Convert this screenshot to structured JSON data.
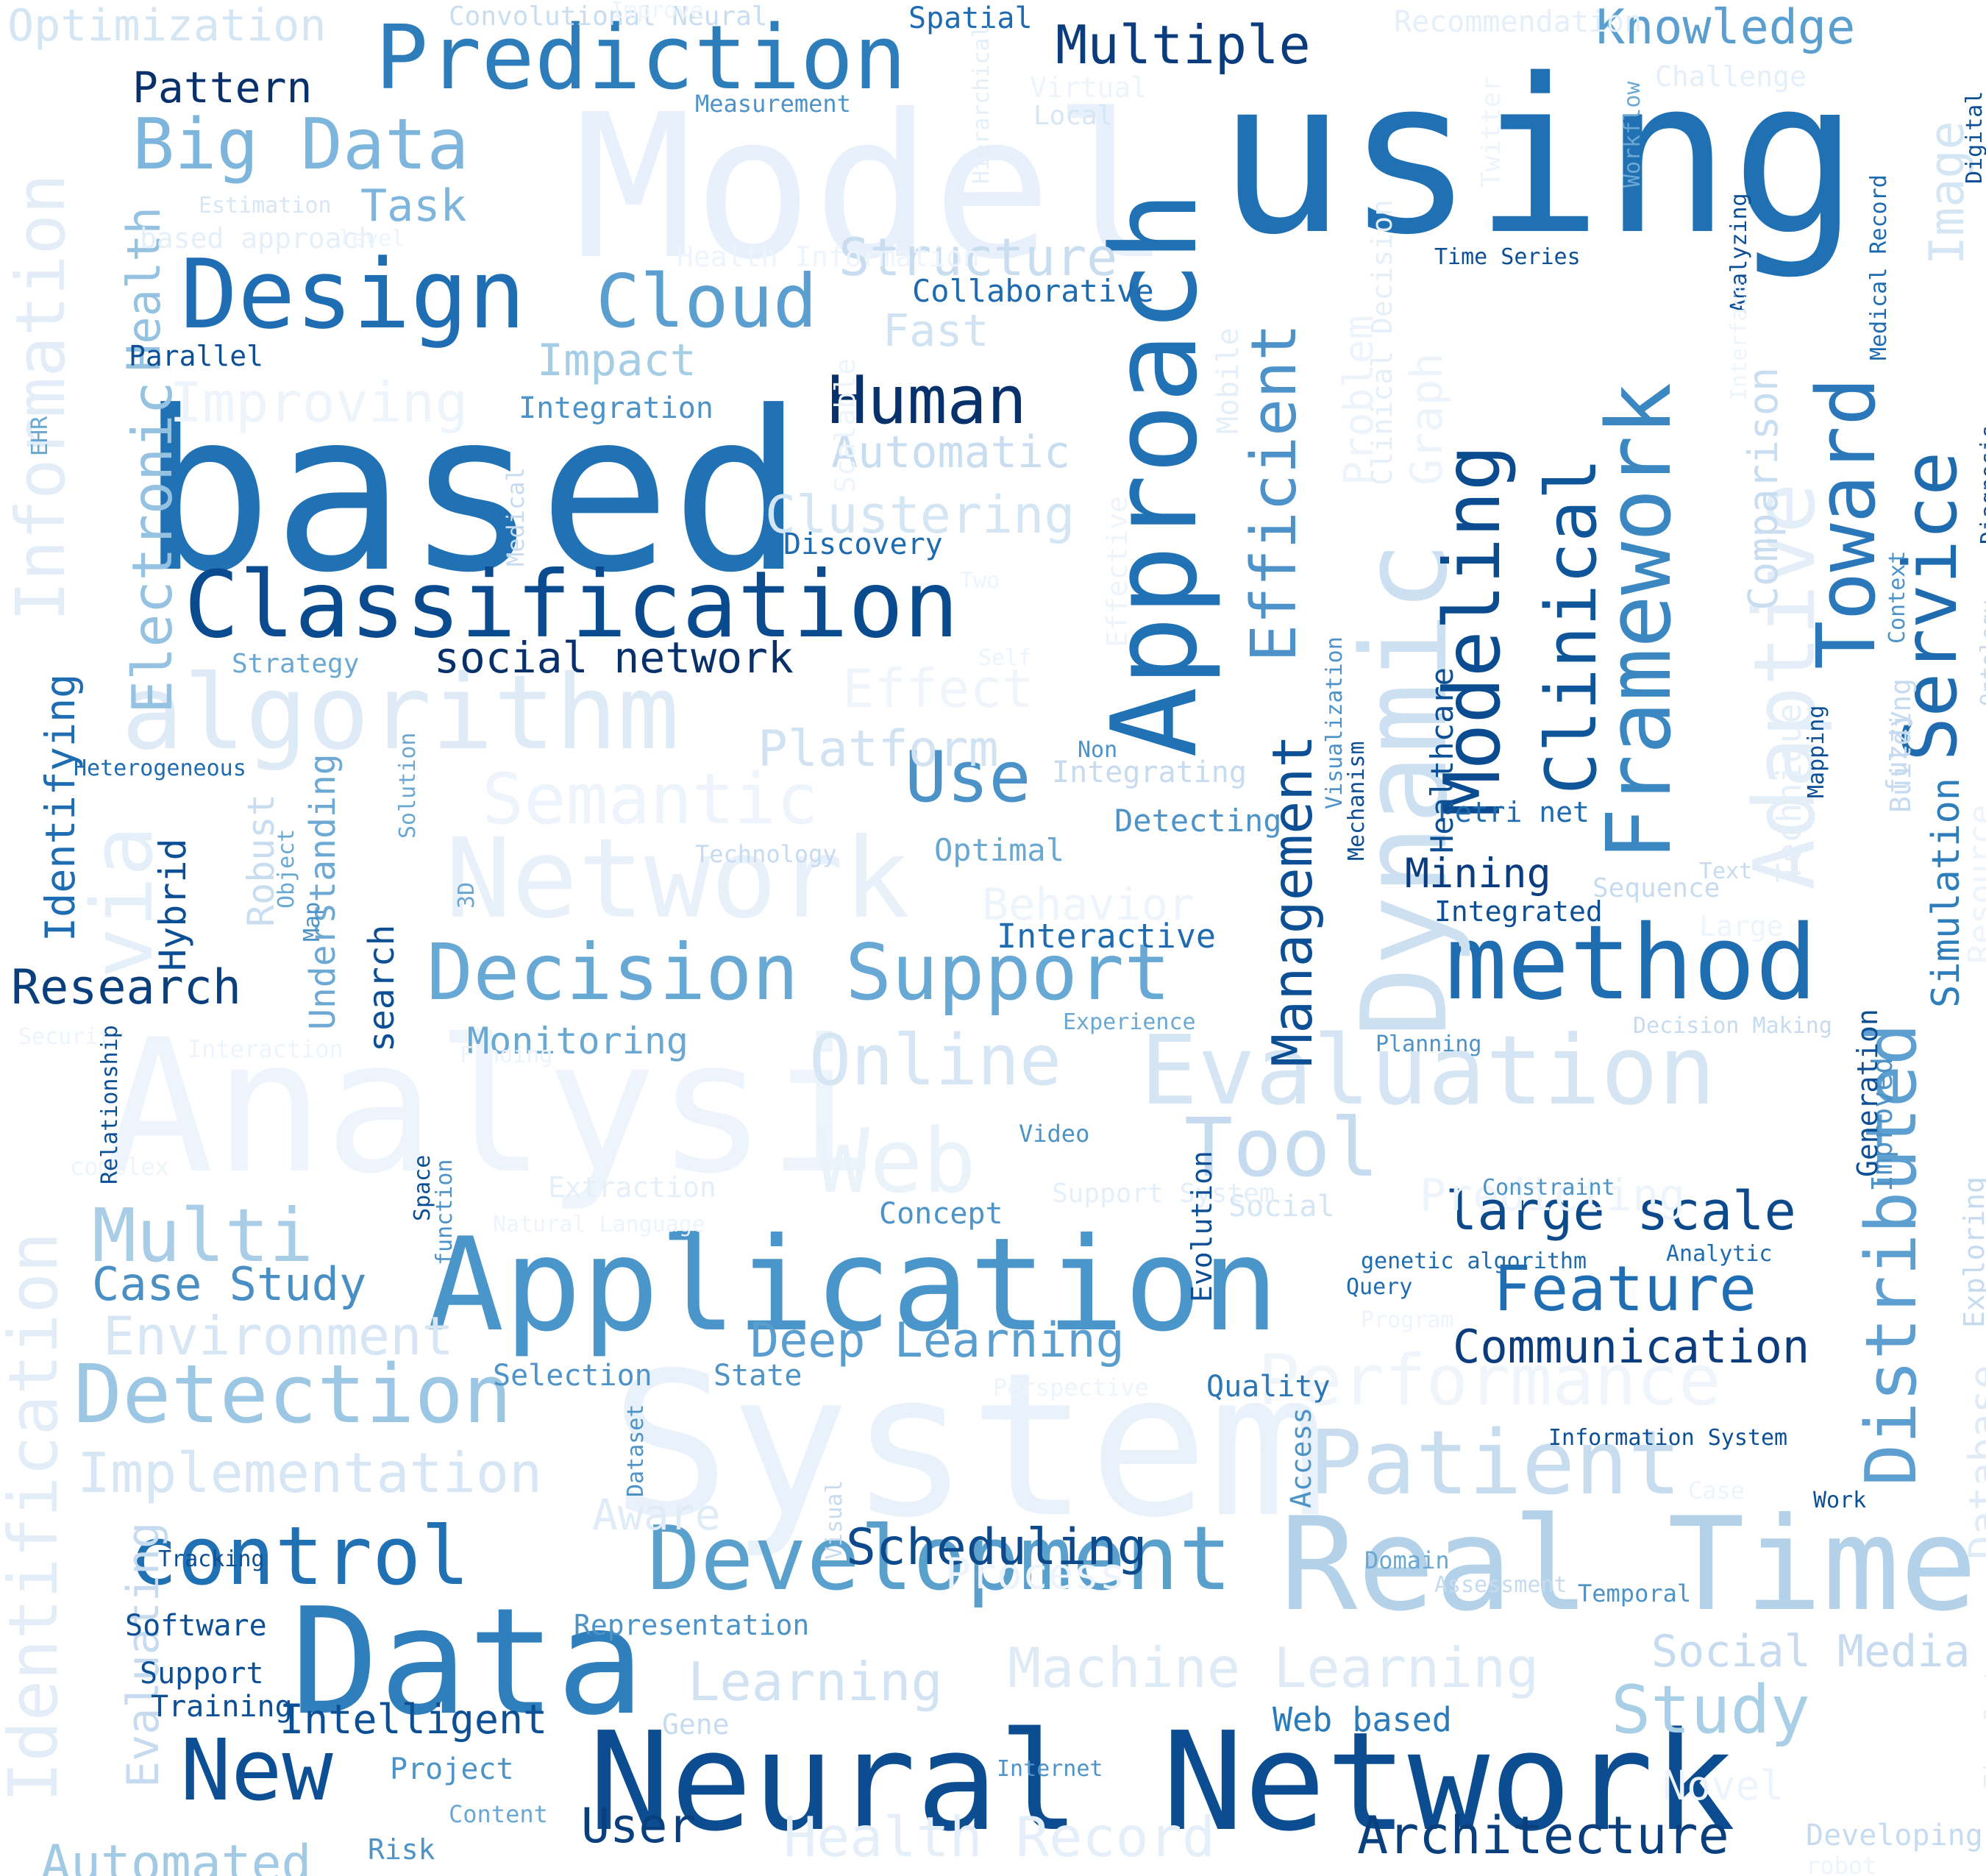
{
  "words": [
    {
      "text": "Model",
      "color": "#e8f0fb"
    },
    {
      "text": "using",
      "color": "#2070b4"
    },
    {
      "text": "based",
      "color": "#2171b5"
    },
    {
      "text": "Analysi",
      "color": "#eef4fc"
    },
    {
      "text": "System",
      "color": "#e9f1fb"
    },
    {
      "text": "Application",
      "color": "#4a95c9"
    },
    {
      "text": "Data",
      "color": "#2f7fbd"
    },
    {
      "text": "Neural Network",
      "color": "#0c4d92"
    },
    {
      "text": "Real Time",
      "color": "#b3d1e8"
    },
    {
      "text": "Approach",
      "color": "#2171b5"
    },
    {
      "text": "Classification",
      "color": "#0a4a8f"
    },
    {
      "text": "Design",
      "color": "#1f6eb3"
    },
    {
      "text": "Prediction",
      "color": "#2d7dbb"
    },
    {
      "text": "algorithm",
      "color": "#deebf7"
    },
    {
      "text": "Network",
      "color": "#e8f1fa"
    },
    {
      "text": "Development",
      "color": "#5aa0cd"
    },
    {
      "text": "Evaluation",
      "color": "#d5e5f3"
    },
    {
      "text": "method",
      "color": "#1f6db1"
    },
    {
      "text": "Decision Support",
      "color": "#68a8d4"
    },
    {
      "text": "Dynamic",
      "color": "#cde0f1"
    },
    {
      "text": "Framework",
      "color": "#3a87c2"
    },
    {
      "text": "Toward",
      "color": "#2a78b9"
    },
    {
      "text": "Service",
      "color": "#1e6bb0"
    },
    {
      "text": "Distributed",
      "color": "#5d9fd0"
    },
    {
      "text": "Modeling",
      "color": "#0b4c90"
    },
    {
      "text": "Clinical",
      "color": "#0f559a"
    },
    {
      "text": "Efficient",
      "color": "#4d92c8"
    },
    {
      "text": "Management",
      "color": "#0d4f94"
    },
    {
      "text": "Adaptive",
      "color": "#e4eef8"
    },
    {
      "text": "Identification",
      "color": "#e2edf8"
    },
    {
      "text": "Information",
      "color": "#e2edf8"
    },
    {
      "text": "Detection",
      "color": "#9cc7e4"
    },
    {
      "text": "control",
      "color": "#2070b4"
    },
    {
      "text": "New",
      "color": "#0d4f94"
    },
    {
      "text": "Patient",
      "color": "#c7dcef"
    },
    {
      "text": "Web",
      "color": "#eaf2fa"
    },
    {
      "text": "Tool",
      "color": "#c6dbef"
    },
    {
      "text": "Online",
      "color": "#d7e6f5"
    },
    {
      "text": "Multi",
      "color": "#a9cde6"
    },
    {
      "text": "Human",
      "color": "#08316b"
    },
    {
      "text": "Cloud",
      "color": "#5a9fd0"
    },
    {
      "text": "Big Data",
      "color": "#7db5dc"
    },
    {
      "text": "Feature",
      "color": "#1f6eb3"
    },
    {
      "text": "Study",
      "color": "#a9cfe6"
    },
    {
      "text": "Architecture",
      "color": "#0a3f7d"
    },
    {
      "text": "Use",
      "color": "#4b92c8"
    },
    {
      "text": "via",
      "color": "#e5eff9"
    },
    {
      "text": "Knowledge",
      "color": "#5a9fd0"
    },
    {
      "text": "Multiple",
      "color": "#0b3d7e"
    },
    {
      "text": "Machine Learning",
      "color": "#deebf7"
    },
    {
      "text": "Health Record",
      "color": "#e5eff9"
    },
    {
      "text": "Performance",
      "color": "#f0f5fb"
    },
    {
      "text": "Semantic",
      "color": "#eef4fb"
    },
    {
      "text": "Implementation",
      "color": "#d7e6f4"
    },
    {
      "text": "Environment",
      "color": "#d7e6f4"
    },
    {
      "text": "Deep Learning",
      "color": "#5a9ed0"
    },
    {
      "text": "large scale",
      "color": "#0c4a8c"
    },
    {
      "text": "Case Study",
      "color": "#4a8fc4"
    },
    {
      "text": "Learning",
      "color": "#d1e3f3"
    },
    {
      "text": "Electronic",
      "color": "#94c2e0"
    },
    {
      "text": "Health",
      "color": "#94c2e0"
    },
    {
      "text": "Automated",
      "color": "#a3cae4"
    },
    {
      "text": "Intelligent",
      "color": "#0d4f94"
    },
    {
      "text": "Scheduling",
      "color": "#0c4a8c"
    },
    {
      "text": "Communication",
      "color": "#0b3d7e"
    },
    {
      "text": "User",
      "color": "#0a3f7d"
    },
    {
      "text": "Research",
      "color": "#0a3f7d"
    },
    {
      "text": "Platform",
      "color": "#d1e3f3"
    },
    {
      "text": "Structure",
      "color": "#c9ddf0"
    },
    {
      "text": "Task",
      "color": "#7db5dc"
    },
    {
      "text": "Pattern",
      "color": "#08316b"
    },
    {
      "text": "Clustering",
      "color": "#d4e5f4"
    },
    {
      "text": "Automatic",
      "color": "#c9ddf0"
    },
    {
      "text": "Improving",
      "color": "#eef4fb"
    },
    {
      "text": "Impact",
      "color": "#a5cde5"
    },
    {
      "text": "Effect",
      "color": "#f0f5fb"
    },
    {
      "text": "social network",
      "color": "#08316b"
    },
    {
      "text": "Identifying",
      "color": "#1e6db2"
    },
    {
      "text": "Hybrid",
      "color": "#0d4f94"
    },
    {
      "text": "Robust",
      "color": "#c9ddf0"
    },
    {
      "text": "search",
      "color": "#0d4f94"
    },
    {
      "text": "Understanding",
      "color": "#6ea9d4"
    },
    {
      "text": "Monitoring",
      "color": "#6aa8d2"
    },
    {
      "text": "Mining",
      "color": "#0b3d7e"
    },
    {
      "text": "Behavior",
      "color": "#eef4fb"
    },
    {
      "text": "Interactive",
      "color": "#1e6bb0"
    },
    {
      "text": "Predicting",
      "color": "#eef4fb"
    },
    {
      "text": "Optimization",
      "color": "#d4e5f4"
    },
    {
      "text": "Image",
      "color": "#d4e5f4"
    },
    {
      "text": "Comparison",
      "color": "#c9ddf0"
    },
    {
      "text": "Simulation",
      "color": "#2e7ebc"
    },
    {
      "text": "Database",
      "color": "#dfecf7"
    },
    {
      "text": "Resource",
      "color": "#eef4fb"
    },
    {
      "text": "Technique",
      "color": "#e5eff9"
    },
    {
      "text": "Problem",
      "color": "#eef4fb"
    },
    {
      "text": "Graph",
      "color": "#eef4fb"
    },
    {
      "text": "Fast",
      "color": "#d1e3f3"
    },
    {
      "text": "Aware",
      "color": "#dfecf7"
    },
    {
      "text": "Process",
      "color": "#eef4fb"
    },
    {
      "text": "Social Media",
      "color": "#c6dbef"
    },
    {
      "text": "Web based",
      "color": "#2b7bba"
    },
    {
      "text": "Novel",
      "color": "#eef4fb"
    },
    {
      "text": "Evaluating",
      "color": "#c6dbef"
    },
    {
      "text": "Social",
      "color": "#d4e5f4"
    },
    {
      "text": "Concept",
      "color": "#4d93c7"
    },
    {
      "text": "Quality",
      "color": "#2b76b5"
    },
    {
      "text": "State",
      "color": "#4d93c7"
    },
    {
      "text": "Selection",
      "color": "#4d93c7"
    },
    {
      "text": "Optimal",
      "color": "#6aa8d2"
    },
    {
      "text": "Detecting",
      "color": "#4d93c7"
    },
    {
      "text": "Collaborative",
      "color": "#1e6bb0"
    },
    {
      "text": "Discovery",
      "color": "#1e6bb0"
    },
    {
      "text": "Integration",
      "color": "#4d93c7"
    },
    {
      "text": "Strategy",
      "color": "#6aa8d2"
    },
    {
      "text": "Heterogeneous",
      "color": "#1e6bb0"
    },
    {
      "text": "Technology",
      "color": "#c6dbef"
    },
    {
      "text": "Integrating",
      "color": "#c6dbef"
    },
    {
      "text": "Petri net",
      "color": "#1e6bb0"
    },
    {
      "text": "Integrated",
      "color": "#0d4f94"
    },
    {
      "text": "Recommendation",
      "color": "#e5eff9"
    },
    {
      "text": "Challenge",
      "color": "#e5eff9"
    },
    {
      "text": "Virtual",
      "color": "#eef4fb"
    },
    {
      "text": "Local",
      "color": "#d7e6f4"
    },
    {
      "text": "Convolutional Neural",
      "color": "#c9ddf0"
    },
    {
      "text": "Improve",
      "color": "#eef4fb"
    },
    {
      "text": "Spatial",
      "color": "#1e6bb0"
    },
    {
      "text": "Measurement",
      "color": "#4d93c7"
    },
    {
      "text": "Estimation",
      "color": "#d7e6f4"
    },
    {
      "text": "based approach",
      "color": "#e5eff9"
    },
    {
      "text": "level",
      "color": "#eef4fb"
    },
    {
      "text": "Health Information",
      "color": "#eef4fb"
    },
    {
      "text": "Parallel",
      "color": "#0d4f94"
    },
    {
      "text": "Time Series",
      "color": "#0d4f94"
    },
    {
      "text": "Video",
      "color": "#4d93c7"
    },
    {
      "text": "Support System",
      "color": "#e5eff9"
    },
    {
      "text": "Extraction",
      "color": "#e5eff9"
    },
    {
      "text": "Natural Language",
      "color": "#eef4fb"
    },
    {
      "text": "complex",
      "color": "#eef4fb"
    },
    {
      "text": "Security",
      "color": "#eef4fb"
    },
    {
      "text": "Interaction",
      "color": "#eef4fb"
    },
    {
      "text": "Finding",
      "color": "#eef4fb"
    },
    {
      "text": "Experience",
      "color": "#6aa8d2"
    },
    {
      "text": "Planning",
      "color": "#4d93c7"
    },
    {
      "text": "Decision Making",
      "color": "#c6dbef"
    },
    {
      "text": "Constraint",
      "color": "#4d93c7"
    },
    {
      "text": "Analytic",
      "color": "#1e6bb0"
    },
    {
      "text": "Query",
      "color": "#1e6bb0"
    },
    {
      "text": "Program",
      "color": "#eef4fb"
    },
    {
      "text": "genetic algorithm",
      "color": "#1e6bb0"
    },
    {
      "text": "Perspective",
      "color": "#eef4fb"
    },
    {
      "text": "Information System",
      "color": "#0d4f94"
    },
    {
      "text": "Domain",
      "color": "#6aa8d2"
    },
    {
      "text": "Assessment",
      "color": "#c6dbef"
    },
    {
      "text": "Case",
      "color": "#eef4fb"
    },
    {
      "text": "Work",
      "color": "#0d4f94"
    },
    {
      "text": "Temporal",
      "color": "#4d93c7"
    },
    {
      "text": "Tracking",
      "color": "#0d4f94"
    },
    {
      "text": "Software",
      "color": "#0d4f94"
    },
    {
      "text": "Support",
      "color": "#0d4f94"
    },
    {
      "text": "Training",
      "color": "#0d4f94"
    },
    {
      "text": "Project",
      "color": "#4d93c7"
    },
    {
      "text": "Content",
      "color": "#6aa8d2"
    },
    {
      "text": "Risk",
      "color": "#4d93c7"
    },
    {
      "text": "Representation",
      "color": "#4d93c7"
    },
    {
      "text": "Gene",
      "color": "#c6dbef"
    },
    {
      "text": "Internet",
      "color": "#4d93c7"
    },
    {
      "text": "Developing",
      "color": "#c6dbef"
    },
    {
      "text": "robot",
      "color": "#eef4fb"
    },
    {
      "text": "Two",
      "color": "#eef4fb"
    },
    {
      "text": "Self",
      "color": "#eef4fb"
    },
    {
      "text": "Non",
      "color": "#4d93c7"
    },
    {
      "text": "Text",
      "color": "#c6dbef"
    },
    {
      "text": "Large",
      "color": "#eef4fb"
    },
    {
      "text": "Sequence",
      "color": "#c6dbef"
    },
    {
      "text": "Twitter",
      "color": "#eef4fb"
    },
    {
      "text": "Workflow",
      "color": "#6aa8d2"
    },
    {
      "text": "Digital",
      "color": "#0d4f94"
    },
    {
      "text": "Hierarchical",
      "color": "#e5eff9"
    },
    {
      "text": "Mobile",
      "color": "#e5eff9"
    },
    {
      "text": "Scalable",
      "color": "#eef4fb"
    },
    {
      "text": "Effective",
      "color": "#eef4fb"
    },
    {
      "text": "Medical",
      "color": "#c6dbef"
    },
    {
      "text": "Clinical Decision",
      "color": "#e5eff9"
    },
    {
      "text": "Healthcare",
      "color": "#0d4f94"
    },
    {
      "text": "Visualization",
      "color": "#4d93c7"
    },
    {
      "text": "Mechanism",
      "color": "#0d4f94"
    },
    {
      "text": "Analyzing",
      "color": "#0d4f94"
    },
    {
      "text": "Interface",
      "color": "#eef4fb"
    },
    {
      "text": "Medical Record",
      "color": "#1e6bb0"
    },
    {
      "text": "Diagnosis",
      "color": "#0d4f94"
    },
    {
      "text": "Ontology",
      "color": "#c6dbef"
    },
    {
      "text": "Context",
      "color": "#4d93c7"
    },
    {
      "text": "Mapping",
      "color": "#0d4f94"
    },
    {
      "text": "fuzzy",
      "color": "#c6dbef"
    },
    {
      "text": "Building",
      "color": "#c6dbef"
    },
    {
      "text": "Improved",
      "color": "#4d93c7"
    },
    {
      "text": "Generation",
      "color": "#0d4f94"
    },
    {
      "text": "Exploring",
      "color": "#c6dbef"
    },
    {
      "text": "Time System",
      "color": "#e5eff9"
    },
    {
      "text": "EHR",
      "color": "#6aa8d2"
    },
    {
      "text": "Object",
      "color": "#6aa8d2"
    },
    {
      "text": "Map",
      "color": "#4d93c7"
    },
    {
      "text": "Solution",
      "color": "#6aa8d2"
    },
    {
      "text": "3D",
      "color": "#6aa8d2"
    },
    {
      "text": "Relationship",
      "color": "#0d4f94"
    },
    {
      "text": "Space",
      "color": "#0d4f94"
    },
    {
      "text": "function",
      "color": "#4d93c7"
    },
    {
      "text": "Evolution",
      "color": "#0d4f94"
    },
    {
      "text": "Dataset",
      "color": "#4d93c7"
    },
    {
      "text": "Visual",
      "color": "#c6dbef"
    },
    {
      "text": "Access",
      "color": "#4d93c7"
    }
  ]
}
